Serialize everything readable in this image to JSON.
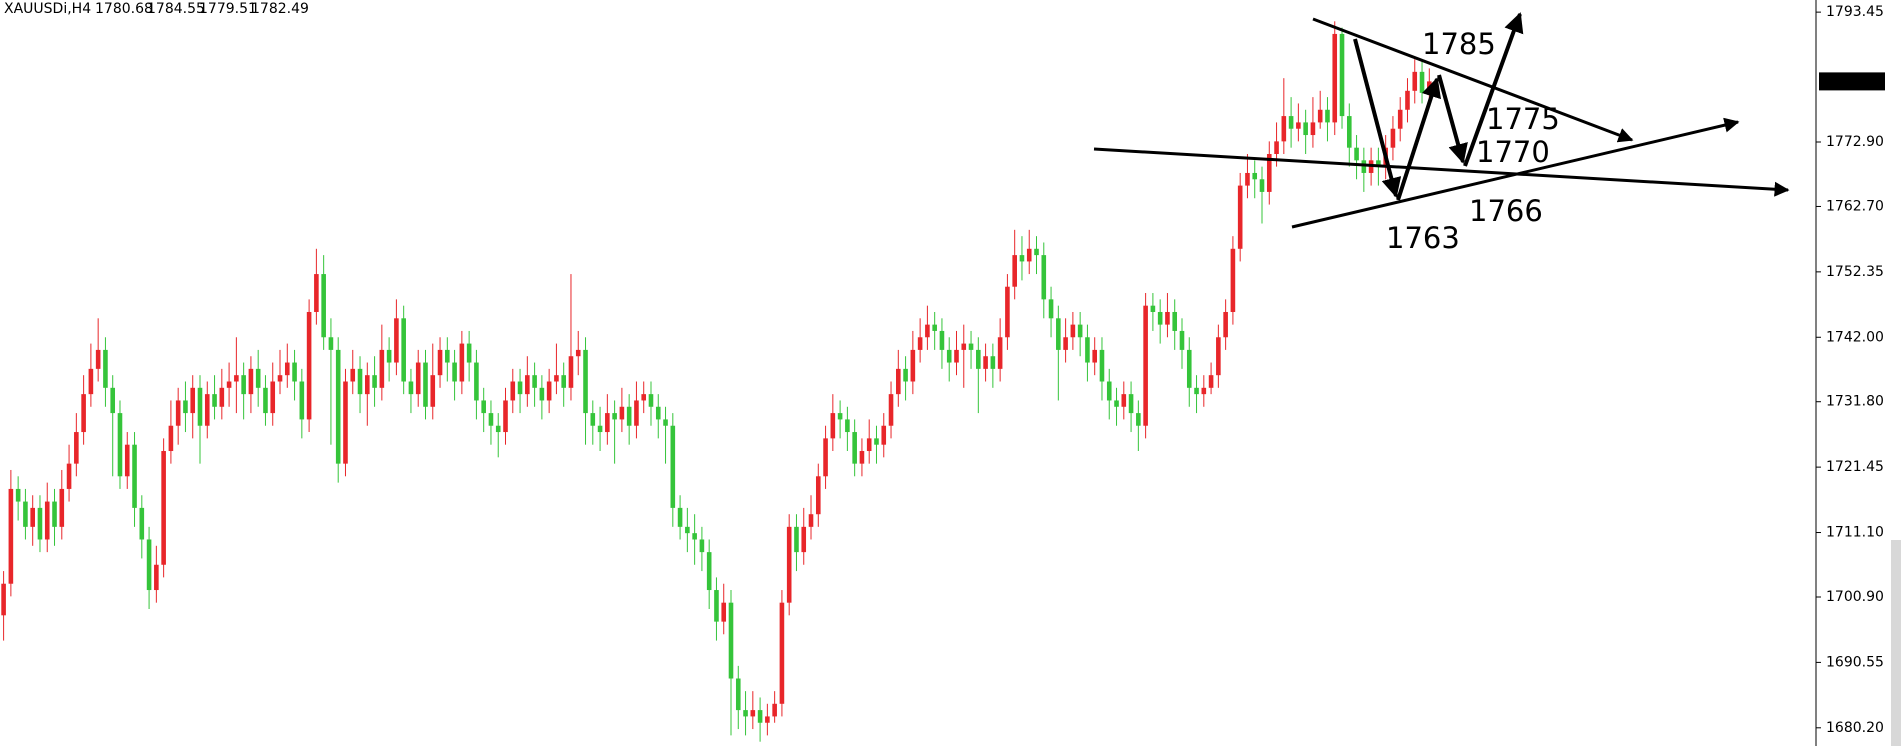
{
  "chart_data": {
    "type": "candlestick",
    "symbol": "XAUUSDi,H4",
    "up_color": "#e8262a",
    "down_color": "#35c43a",
    "ylim": [
      1677.32,
      1795.37
    ],
    "yticks": [
      {
        "value": 1680.2,
        "label": "1680.20"
      },
      1690.55,
      {
        "value": 1700.9,
        "label": "1700.90"
      },
      {
        "value": 1711.1,
        "label": "1711.10"
      },
      1721.45,
      {
        "value": 1731.8,
        "label": "1731.80"
      },
      {
        "value": 1742,
        "label": "1742.00"
      },
      1752.35,
      {
        "value": 1762.7,
        "label": "1762.70"
      },
      {
        "value": 1772.9,
        "label": "1772.90"
      },
      1793.45
    ],
    "annotations": [
      "1785",
      "1775",
      "1770",
      "1766",
      "1763"
    ],
    "ohlc": [
      [
        1698,
        1705,
        1694,
        1703
      ],
      [
        1703,
        1721,
        1701,
        1718
      ],
      [
        1718,
        1720,
        1713,
        1716
      ],
      [
        1716,
        1718,
        1710,
        1712
      ],
      [
        1712,
        1717,
        1709,
        1715
      ],
      [
        1715,
        1717,
        1708,
        1710
      ],
      [
        1710,
        1719,
        1708,
        1716
      ],
      [
        1716,
        1718,
        1709,
        1712
      ],
      [
        1712,
        1721,
        1710,
        1718
      ],
      [
        1718,
        1725,
        1716,
        1722
      ],
      [
        1722,
        1730,
        1720,
        1727
      ],
      [
        1727,
        1736,
        1725,
        1733
      ],
      [
        1733,
        1741,
        1731,
        1737
      ],
      [
        1737,
        1745,
        1735,
        1740
      ],
      [
        1740,
        1742,
        1731,
        1734
      ],
      [
        1734,
        1736,
        1720,
        1730
      ],
      [
        1730,
        1732,
        1718,
        1720
      ],
      [
        1720,
        1727,
        1718,
        1725
      ],
      [
        1725,
        1727,
        1712,
        1715
      ],
      [
        1715,
        1717,
        1707,
        1710
      ],
      [
        1710,
        1712,
        1699,
        1702
      ],
      [
        1702,
        1709,
        1700,
        1706
      ],
      [
        1706,
        1726,
        1704,
        1724
      ],
      [
        1724,
        1732,
        1722,
        1728
      ],
      [
        1728,
        1734,
        1725,
        1732
      ],
      [
        1732,
        1735,
        1727,
        1730
      ],
      [
        1730,
        1736,
        1726,
        1734
      ],
      [
        1734,
        1736,
        1722,
        1728
      ],
      [
        1728,
        1735,
        1726,
        1733
      ],
      [
        1733,
        1736,
        1729,
        1731
      ],
      [
        1731,
        1737,
        1729,
        1734
      ],
      [
        1734,
        1738,
        1731,
        1735
      ],
      [
        1735,
        1742,
        1730,
        1736
      ],
      [
        1736,
        1738,
        1729,
        1733
      ],
      [
        1733,
        1739,
        1730,
        1737
      ],
      [
        1737,
        1740,
        1731,
        1734
      ],
      [
        1734,
        1736,
        1728,
        1730
      ],
      [
        1730,
        1738,
        1728,
        1735
      ],
      [
        1735,
        1740,
        1733,
        1736
      ],
      [
        1736,
        1741,
        1734,
        1738
      ],
      [
        1738,
        1740,
        1732,
        1735
      ],
      [
        1735,
        1737,
        1726,
        1729
      ],
      [
        1729,
        1748,
        1727,
        1746
      ],
      [
        1746,
        1756,
        1744,
        1752
      ],
      [
        1752,
        1755,
        1740,
        1742
      ],
      [
        1742,
        1745,
        1725,
        1740
      ],
      [
        1740,
        1742,
        1719,
        1722
      ],
      [
        1722,
        1737,
        1720,
        1735
      ],
      [
        1735,
        1740,
        1733,
        1737
      ],
      [
        1737,
        1739,
        1730,
        1733
      ],
      [
        1733,
        1738,
        1728,
        1736
      ],
      [
        1736,
        1739,
        1731,
        1734
      ],
      [
        1734,
        1744,
        1732,
        1740
      ],
      [
        1740,
        1742,
        1735,
        1738
      ],
      [
        1738,
        1748,
        1736,
        1745
      ],
      [
        1745,
        1747,
        1733,
        1735
      ],
      [
        1735,
        1737,
        1730,
        1733
      ],
      [
        1733,
        1740,
        1731,
        1738
      ],
      [
        1738,
        1740,
        1729,
        1731
      ],
      [
        1731,
        1741,
        1729,
        1736
      ],
      [
        1736,
        1742,
        1734,
        1740
      ],
      [
        1740,
        1742,
        1735,
        1738
      ],
      [
        1738,
        1740,
        1732,
        1735
      ],
      [
        1735,
        1743,
        1733,
        1741
      ],
      [
        1741,
        1743,
        1735,
        1738
      ],
      [
        1738,
        1740,
        1729,
        1732
      ],
      [
        1732,
        1734,
        1727,
        1730
      ],
      [
        1730,
        1732,
        1725,
        1728
      ],
      [
        1728,
        1730,
        1723,
        1727
      ],
      [
        1727,
        1734,
        1725,
        1732
      ],
      [
        1732,
        1737,
        1730,
        1735
      ],
      [
        1735,
        1737,
        1730,
        1733
      ],
      [
        1733,
        1739,
        1731,
        1736
      ],
      [
        1736,
        1738,
        1731,
        1734
      ],
      [
        1734,
        1736,
        1729,
        1732
      ],
      [
        1732,
        1737,
        1730,
        1735
      ],
      [
        1735,
        1741,
        1733,
        1736
      ],
      [
        1736,
        1738,
        1731,
        1734
      ],
      [
        1734,
        1752,
        1732,
        1739
      ],
      [
        1739,
        1743,
        1736,
        1740
      ],
      [
        1740,
        1742,
        1725,
        1730
      ],
      [
        1730,
        1732,
        1725,
        1728
      ],
      [
        1728,
        1731,
        1724,
        1727
      ],
      [
        1727,
        1733,
        1725,
        1730
      ],
      [
        1730,
        1732,
        1722,
        1729
      ],
      [
        1729,
        1734,
        1727,
        1731
      ],
      [
        1731,
        1733,
        1725,
        1728
      ],
      [
        1728,
        1735,
        1726,
        1732
      ],
      [
        1732,
        1735,
        1730,
        1733
      ],
      [
        1733,
        1735,
        1728,
        1731
      ],
      [
        1731,
        1733,
        1726,
        1729
      ],
      [
        1729,
        1731,
        1722,
        1728
      ],
      [
        1728,
        1730,
        1712,
        1715
      ],
      [
        1715,
        1717,
        1710,
        1712
      ],
      [
        1712,
        1715,
        1708,
        1711
      ],
      [
        1711,
        1714,
        1706,
        1710
      ],
      [
        1710,
        1712,
        1705,
        1708
      ],
      [
        1708,
        1710,
        1699,
        1702
      ],
      [
        1702,
        1704,
        1694,
        1697
      ],
      [
        1697,
        1703,
        1695,
        1700
      ],
      [
        1700,
        1702,
        1679,
        1688
      ],
      [
        1688,
        1690,
        1680,
        1683
      ],
      [
        1683,
        1686,
        1679,
        1682
      ],
      [
        1682,
        1686,
        1680,
        1683
      ],
      [
        1683,
        1685,
        1678,
        1681
      ],
      [
        1681,
        1684,
        1679,
        1682
      ],
      [
        1682,
        1686,
        1681,
        1684
      ],
      [
        1684,
        1702,
        1682,
        1700
      ],
      [
        1700,
        1714,
        1698,
        1712
      ],
      [
        1712,
        1714,
        1705,
        1708
      ],
      [
        1708,
        1715,
        1706,
        1712
      ],
      [
        1712,
        1717,
        1710,
        1714
      ],
      [
        1714,
        1722,
        1712,
        1720
      ],
      [
        1720,
        1728,
        1718,
        1726
      ],
      [
        1726,
        1733,
        1724,
        1730
      ],
      [
        1730,
        1732,
        1726,
        1729
      ],
      [
        1729,
        1731,
        1724,
        1727
      ],
      [
        1727,
        1729,
        1720,
        1722
      ],
      [
        1722,
        1726,
        1720,
        1724
      ],
      [
        1724,
        1729,
        1722,
        1726
      ],
      [
        1726,
        1728,
        1722,
        1725
      ],
      [
        1725,
        1730,
        1723,
        1728
      ],
      [
        1728,
        1735,
        1726,
        1733
      ],
      [
        1733,
        1740,
        1731,
        1737
      ],
      [
        1737,
        1739,
        1732,
        1735
      ],
      [
        1735,
        1743,
        1733,
        1740
      ],
      [
        1740,
        1745,
        1738,
        1742
      ],
      [
        1742,
        1747,
        1740,
        1744
      ],
      [
        1744,
        1746,
        1740,
        1743
      ],
      [
        1743,
        1745,
        1737,
        1740
      ],
      [
        1740,
        1742,
        1735,
        1738
      ],
      [
        1738,
        1743,
        1736,
        1740
      ],
      [
        1740,
        1744,
        1734,
        1741
      ],
      [
        1741,
        1743,
        1737,
        1740
      ],
      [
        1740,
        1742,
        1730,
        1737
      ],
      [
        1737,
        1741,
        1735,
        1739
      ],
      [
        1739,
        1741,
        1734,
        1737
      ],
      [
        1737,
        1745,
        1735,
        1742
      ],
      [
        1742,
        1752,
        1740,
        1750
      ],
      [
        1750,
        1759,
        1748,
        1755
      ],
      [
        1755,
        1758,
        1751,
        1754
      ],
      [
        1754,
        1759,
        1752,
        1756
      ],
      [
        1756,
        1758,
        1752,
        1755
      ],
      [
        1755,
        1757,
        1745,
        1748
      ],
      [
        1748,
        1750,
        1742,
        1745
      ],
      [
        1745,
        1747,
        1732,
        1740
      ],
      [
        1740,
        1745,
        1738,
        1742
      ],
      [
        1742,
        1746,
        1740,
        1744
      ],
      [
        1744,
        1746,
        1739,
        1742
      ],
      [
        1742,
        1744,
        1735,
        1738
      ],
      [
        1738,
        1742,
        1736,
        1740
      ],
      [
        1740,
        1742,
        1732,
        1735
      ],
      [
        1735,
        1737,
        1729,
        1732
      ],
      [
        1732,
        1734,
        1728,
        1731
      ],
      [
        1731,
        1735,
        1729,
        1733
      ],
      [
        1733,
        1735,
        1727,
        1730
      ],
      [
        1730,
        1732,
        1724,
        1728
      ],
      [
        1728,
        1749,
        1726,
        1747
      ],
      [
        1747,
        1749,
        1743,
        1746
      ],
      [
        1746,
        1748,
        1741,
        1744
      ],
      [
        1744,
        1749,
        1742,
        1746
      ],
      [
        1746,
        1748,
        1740,
        1743
      ],
      [
        1743,
        1745,
        1737,
        1740
      ],
      [
        1740,
        1742,
        1731,
        1734
      ],
      [
        1734,
        1736,
        1730,
        1733
      ],
      [
        1733,
        1736,
        1731,
        1734
      ],
      [
        1734,
        1738,
        1733,
        1736
      ],
      [
        1736,
        1744,
        1734,
        1742
      ],
      [
        1742,
        1748,
        1740,
        1746
      ],
      [
        1746,
        1758,
        1744,
        1756
      ],
      [
        1756,
        1768,
        1754,
        1766
      ],
      [
        1766,
        1771,
        1764,
        1768
      ],
      [
        1768,
        1770,
        1764,
        1767
      ],
      [
        1767,
        1769,
        1760,
        1765
      ],
      [
        1765,
        1773,
        1763,
        1771
      ],
      [
        1771,
        1776,
        1769,
        1773
      ],
      [
        1773,
        1783,
        1771,
        1777
      ],
      [
        1777,
        1780,
        1772,
        1775
      ],
      [
        1775,
        1779,
        1773,
        1776
      ],
      [
        1776,
        1778,
        1771,
        1774
      ],
      [
        1774,
        1780,
        1772,
        1776
      ],
      [
        1776,
        1781,
        1775,
        1778
      ],
      [
        1778,
        1780,
        1773,
        1776
      ],
      [
        1776,
        1792,
        1774,
        1790
      ],
      [
        1790,
        1791,
        1775,
        1777
      ],
      [
        1777,
        1779,
        1769,
        1772
      ],
      [
        1772,
        1774,
        1767,
        1770
      ],
      [
        1770,
        1772,
        1765,
        1768
      ],
      [
        1768,
        1772,
        1766,
        1770
      ],
      [
        1770,
        1772,
        1766,
        1769
      ],
      [
        1769,
        1774,
        1767,
        1772
      ],
      [
        1772,
        1777,
        1770,
        1775
      ],
      [
        1775,
        1780,
        1773,
        1778
      ],
      [
        1778,
        1783,
        1776,
        1781
      ],
      [
        1781,
        1786,
        1779,
        1784
      ],
      [
        1784,
        1786,
        1779,
        1780.68
      ],
      [
        1780.68,
        1784.55,
        1779.51,
        1782.49
      ]
    ]
  }
}
